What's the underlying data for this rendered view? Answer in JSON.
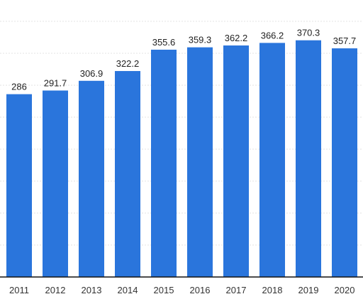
{
  "chart_data": {
    "type": "bar",
    "categories": [
      "2011",
      "2012",
      "2013",
      "2014",
      "2015",
      "2016",
      "2017",
      "2018",
      "2019",
      "2020"
    ],
    "values": [
      286,
      291.7,
      306.9,
      322.2,
      355.6,
      359.3,
      362.2,
      366.2,
      370.3,
      357.7
    ],
    "value_labels": [
      "286",
      "291.7",
      "306.9",
      "322.2",
      "355.6",
      "359.3",
      "362.2",
      "366.2",
      "370.3",
      "357.7"
    ],
    "title": "",
    "xlabel": "",
    "ylabel": "",
    "ylim": [
      0,
      400
    ],
    "grid": true,
    "bar_color": "#2a75dc"
  }
}
